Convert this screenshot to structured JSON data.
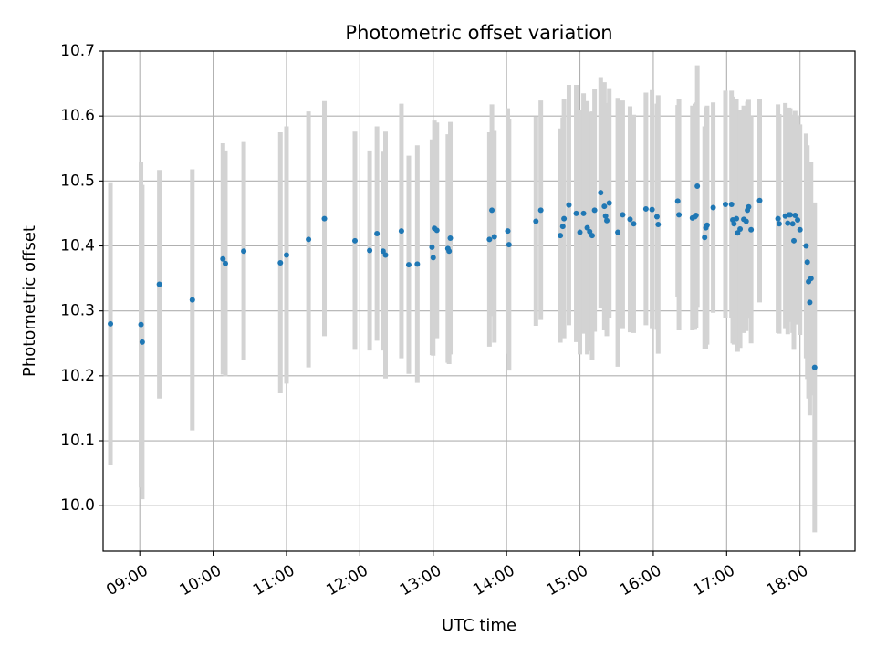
{
  "chart_data": {
    "type": "scatter",
    "title": "Photometric offset variation",
    "xlabel": "UTC time",
    "ylabel": "Photometric offset",
    "xlim": [
      "08:30",
      "18:45"
    ],
    "ylim": [
      9.93,
      10.7
    ],
    "x_ticks": [
      "09:00",
      "10:00",
      "11:00",
      "12:00",
      "13:00",
      "14:00",
      "15:00",
      "16:00",
      "17:00",
      "18:00"
    ],
    "y_ticks": [
      "10.0",
      "10.1",
      "10.2",
      "10.3",
      "10.4",
      "10.5",
      "10.6",
      "10.7"
    ],
    "grid": true,
    "colors": {
      "points": "#1f77b4",
      "errorbars": "#d3d3d3",
      "grid": "#b0b0b0"
    },
    "series": [
      {
        "x": [
          "08:36",
          "09:01",
          "09:02",
          "09:16",
          "09:43",
          "10:08",
          "10:10",
          "10:25",
          "10:55",
          "11:00",
          "11:18",
          "11:31",
          "11:56",
          "12:08",
          "12:14",
          "12:19",
          "12:21",
          "12:34",
          "12:40",
          "12:47",
          "12:59",
          "13:00",
          "13:01",
          "13:03",
          "13:12",
          "13:13",
          "13:14",
          "13:46",
          "13:48",
          "13:50",
          "14:01",
          "14:02",
          "14:24",
          "14:28",
          "14:44",
          "14:46",
          "14:47",
          "14:51",
          "14:57",
          "15:00",
          "15:03",
          "15:06",
          "15:08",
          "15:10",
          "15:12",
          "15:17",
          "15:20",
          "15:21",
          "15:22",
          "15:24",
          "15:31",
          "15:35",
          "15:41",
          "15:44",
          "15:54",
          "15:59",
          "16:03",
          "16:04",
          "16:20",
          "16:21",
          "16:32",
          "16:34",
          "16:35",
          "16:36",
          "16:42",
          "16:43",
          "16:44",
          "16:49",
          "16:59",
          "17:04",
          "17:05",
          "17:06",
          "17:08",
          "17:09",
          "17:11",
          "17:14",
          "17:16",
          "17:17",
          "17:18",
          "17:20",
          "17:27",
          "17:42",
          "17:43",
          "17:48",
          "17:50",
          "17:51",
          "17:52",
          "17:54",
          "17:55",
          "17:56",
          "17:58",
          "18:00",
          "18:05",
          "18:06",
          "18:07",
          "18:08",
          "18:09",
          "18:12"
        ],
        "y": [
          10.28,
          10.279,
          10.252,
          10.341,
          10.317,
          10.38,
          10.373,
          10.392,
          10.374,
          10.386,
          10.41,
          10.442,
          10.408,
          10.393,
          10.419,
          10.392,
          10.386,
          10.423,
          10.371,
          10.372,
          10.398,
          10.382,
          10.427,
          10.424,
          10.396,
          10.392,
          10.412,
          10.41,
          10.455,
          10.414,
          10.423,
          10.402,
          10.438,
          10.455,
          10.416,
          10.43,
          10.442,
          10.463,
          10.45,
          10.421,
          10.45,
          10.428,
          10.422,
          10.416,
          10.455,
          10.482,
          10.461,
          10.446,
          10.439,
          10.466,
          10.421,
          10.448,
          10.441,
          10.434,
          10.457,
          10.456,
          10.445,
          10.433,
          10.469,
          10.448,
          10.443,
          10.445,
          10.447,
          10.492,
          10.413,
          10.428,
          10.432,
          10.459,
          10.464,
          10.464,
          10.44,
          10.434,
          10.442,
          10.42,
          10.426,
          10.441,
          10.438,
          10.455,
          10.46,
          10.425,
          10.47,
          10.442,
          10.434,
          10.446,
          10.435,
          10.448,
          10.448,
          10.434,
          10.408,
          10.447,
          10.44,
          10.425,
          10.4,
          10.375,
          10.345,
          10.313,
          10.35,
          10.213
        ],
        "yerr": [
          0.218,
          0.251,
          0.242,
          0.176,
          0.201,
          0.178,
          0.174,
          0.168,
          0.201,
          0.198,
          0.197,
          0.181,
          0.168,
          0.154,
          0.165,
          0.153,
          0.19,
          0.196,
          0.168,
          0.183,
          0.166,
          0.151,
          0.166,
          0.166,
          0.176,
          0.174,
          0.179,
          0.165,
          0.163,
          0.163,
          0.189,
          0.194,
          0.161,
          0.169,
          0.165,
          0.168,
          0.184,
          0.185,
          0.198,
          0.188,
          0.185,
          0.195,
          0.184,
          0.191,
          0.187,
          0.178,
          0.191,
          0.174,
          0.178,
          0.177,
          0.207,
          0.176,
          0.174,
          0.168,
          0.179,
          0.184,
          0.174,
          0.199,
          0.148,
          0.178,
          0.173,
          0.174,
          0.174,
          0.186,
          0.171,
          0.186,
          0.184,
          0.162,
          0.175,
          0.175,
          0.19,
          0.186,
          0.184,
          0.183,
          0.183,
          0.175,
          0.169,
          0.167,
          0.165,
          0.175,
          0.157,
          0.176,
          0.169,
          0.174,
          0.171,
          0.165,
          0.164,
          0.168,
          0.168,
          0.161,
          0.161,
          0.162,
          0.173,
          0.18,
          0.18,
          0.174,
          0.18,
          0.254
        ]
      }
    ]
  }
}
